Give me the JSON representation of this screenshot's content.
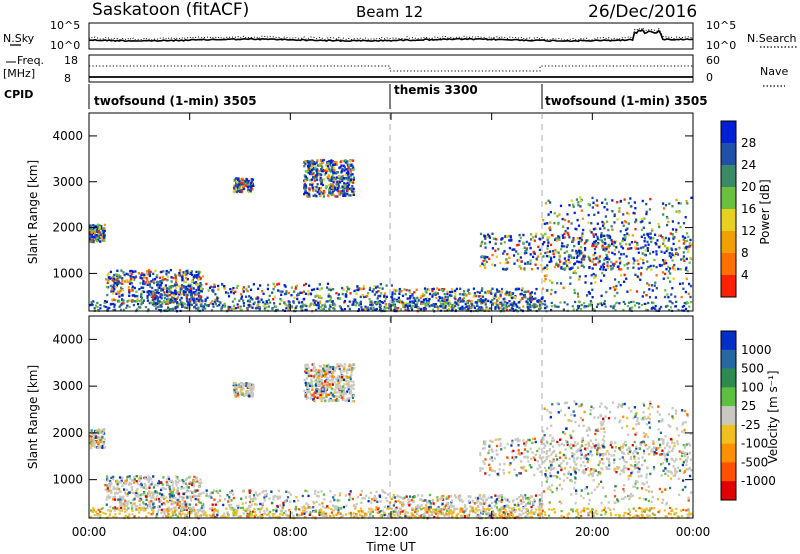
{
  "header": {
    "station": "Saskatoon (fitACF)",
    "beam": "Beam 12",
    "date": "26/Dec/2016"
  },
  "noise_panel": {
    "left_label": "N.Sky",
    "left_ticks": [
      "10^5",
      "10^0"
    ],
    "right_ticks": [
      "10^5",
      "10^0"
    ],
    "right_label": "N.Search"
  },
  "freq_panel": {
    "left_label_1": "Freq.",
    "left_label_2": "[MHz]",
    "left_ticks": [
      "18",
      "8"
    ],
    "right_ticks": [
      "60",
      "0"
    ],
    "right_label": "Nave"
  },
  "cpid": {
    "label": "CPID",
    "segments": [
      {
        "name": "twofsound (1-min) 3505",
        "start_hour": 0
      },
      {
        "name": "themis 3300",
        "start_hour": 12
      },
      {
        "name": "twofsound (1-min) 3505",
        "start_hour": 18
      }
    ]
  },
  "x_axis": {
    "ticks": [
      "00:00",
      "04:00",
      "08:00",
      "12:00",
      "16:00",
      "20:00",
      "00:00"
    ],
    "label": "Time UT"
  },
  "power_panel": {
    "ylabel": "Slant Range [km]",
    "yticks": [
      "1000",
      "2000",
      "3000",
      "4000"
    ],
    "cbar_label": "Power [dB]",
    "cbar_ticks": [
      "4",
      "8",
      "12",
      "16",
      "20",
      "24",
      "28"
    ],
    "cbar_colors": [
      "#0020d8",
      "#2050a8",
      "#3a8a68",
      "#6cc040",
      "#e8d020",
      "#f0a000",
      "#ff7000",
      "#ff2000"
    ]
  },
  "velocity_panel": {
    "ylabel": "Slant Range [km]",
    "yticks": [
      "1000",
      "2000",
      "3000",
      "4000"
    ],
    "cbar_label": "Velocity [m s⁻¹]",
    "cbar_ticks": [
      "1000",
      "500",
      "100",
      "25",
      "-25",
      "-100",
      "-500",
      "-1000"
    ],
    "cbar_colors": [
      "#0030c8",
      "#2868a0",
      "#2e8a50",
      "#5cc040",
      "#c8c8c0",
      "#f0c020",
      "#ff9000",
      "#ff5000",
      "#e00000"
    ]
  },
  "chart_data": {
    "type": "heatmap",
    "title": "Saskatoon (fitACF) Beam 12 26/Dec/2016",
    "xlabel": "Time UT",
    "ylabel": "Slant Range [km]",
    "xlim_hours": [
      0,
      24
    ],
    "ylim_km": [
      180,
      4500
    ],
    "power_db_range": [
      0,
      30
    ],
    "velocity_range": [
      -1000,
      1000
    ],
    "scatter_regions": [
      {
        "start_hour": 0,
        "end_hour": 0.6,
        "range_min_km": 1700,
        "range_max_km": 2100
      },
      {
        "start_hour": 0.6,
        "end_hour": 4.5,
        "range_min_km": 350,
        "range_max_km": 1100
      },
      {
        "start_hour": 2.5,
        "end_hour": 12,
        "range_min_km": 200,
        "range_max_km": 800
      },
      {
        "start_hour": 5.7,
        "end_hour": 6.5,
        "range_min_km": 2800,
        "range_max_km": 3100
      },
      {
        "start_hour": 8.5,
        "end_hour": 10.5,
        "range_min_km": 2700,
        "range_max_km": 3500
      },
      {
        "start_hour": 12,
        "end_hour": 18,
        "range_min_km": 200,
        "range_max_km": 700
      },
      {
        "start_hour": 15.5,
        "end_hour": 23.9,
        "range_min_km": 1100,
        "range_max_km": 1900
      },
      {
        "start_hour": 18,
        "end_hour": 23.9,
        "range_min_km": 500,
        "range_max_km": 2700
      }
    ]
  }
}
